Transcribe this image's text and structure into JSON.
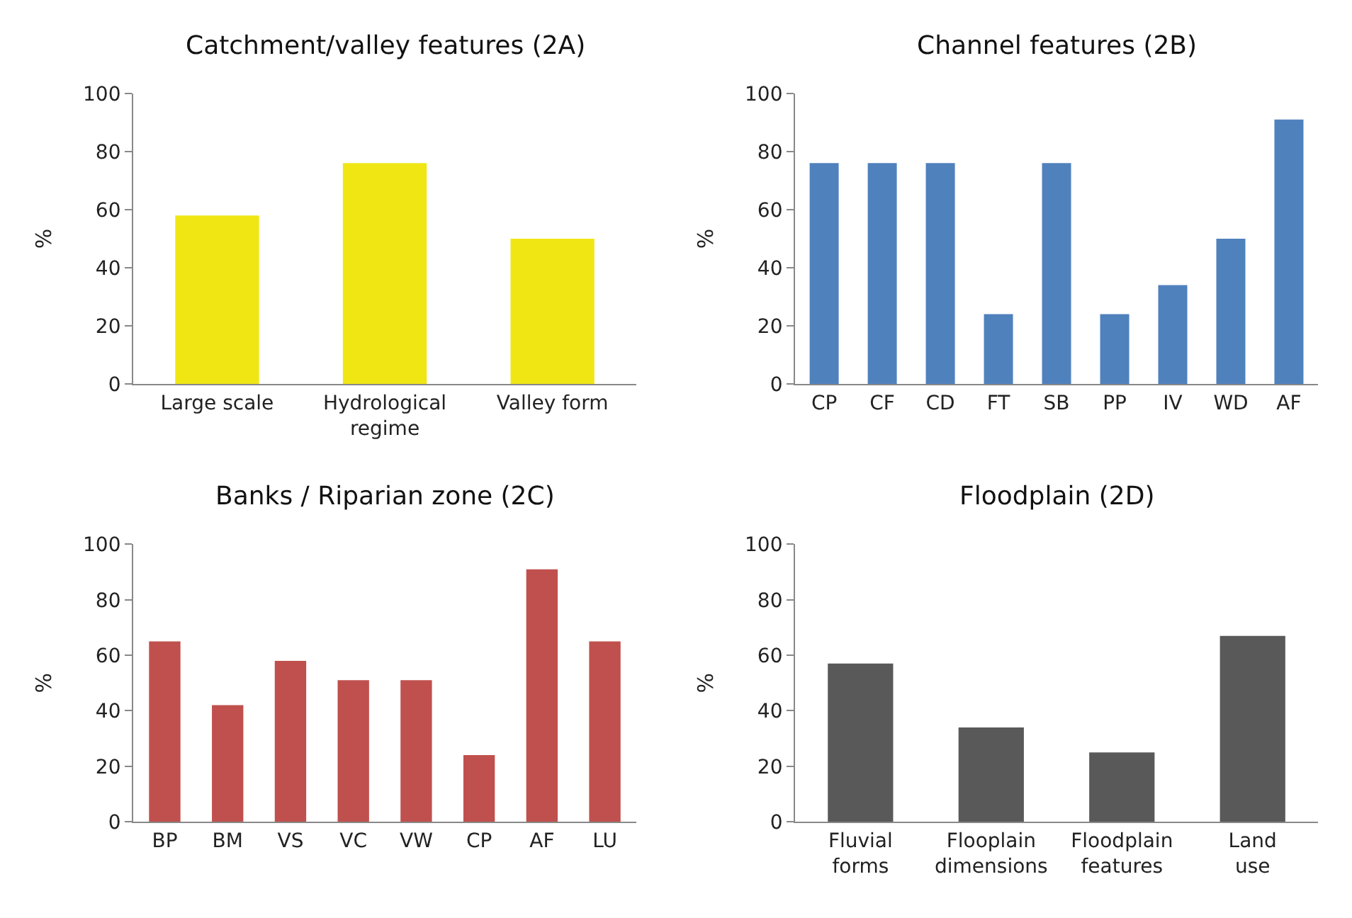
{
  "chart_data": [
    {
      "type": "bar",
      "title": "Catchment/valley features (2A)",
      "ylabel": "%",
      "categories": [
        "Large scale",
        "Hydrological\nregime",
        "Valley form"
      ],
      "values": [
        58,
        76,
        50
      ],
      "color": "#f0e614",
      "ylim": [
        0,
        100
      ],
      "yticks": [
        0,
        20,
        40,
        60,
        80,
        100
      ],
      "grid": false,
      "legend": false
    },
    {
      "type": "bar",
      "title": "Channel features (2B)",
      "ylabel": "%",
      "categories": [
        "CP",
        "CF",
        "CD",
        "FT",
        "SB",
        "PP",
        "IV",
        "WD",
        "AF"
      ],
      "values": [
        76,
        76,
        76,
        24,
        76,
        24,
        34,
        50,
        91
      ],
      "color": "#4f81bd",
      "ylim": [
        0,
        100
      ],
      "yticks": [
        0,
        20,
        40,
        60,
        80,
        100
      ],
      "grid": false,
      "legend": false
    },
    {
      "type": "bar",
      "title": "Banks / Riparian zone (2C)",
      "ylabel": "%",
      "categories": [
        "BP",
        "BM",
        "VS",
        "VC",
        "VW",
        "CP",
        "AF",
        "LU"
      ],
      "values": [
        65,
        42,
        58,
        51,
        51,
        24,
        91,
        65
      ],
      "color": "#c0504d",
      "ylim": [
        0,
        100
      ],
      "yticks": [
        0,
        20,
        40,
        60,
        80,
        100
      ],
      "grid": false,
      "legend": false
    },
    {
      "type": "bar",
      "title": "Floodplain (2D)",
      "ylabel": "%",
      "categories": [
        "Fluvial\nforms",
        "Flooplain\ndimensions",
        "Floodplain\nfeatures",
        "Land\nuse"
      ],
      "values": [
        57,
        34,
        25,
        67
      ],
      "color": "#595959",
      "ylim": [
        0,
        100
      ],
      "yticks": [
        0,
        20,
        40,
        60,
        80,
        100
      ],
      "grid": false,
      "legend": false
    }
  ]
}
